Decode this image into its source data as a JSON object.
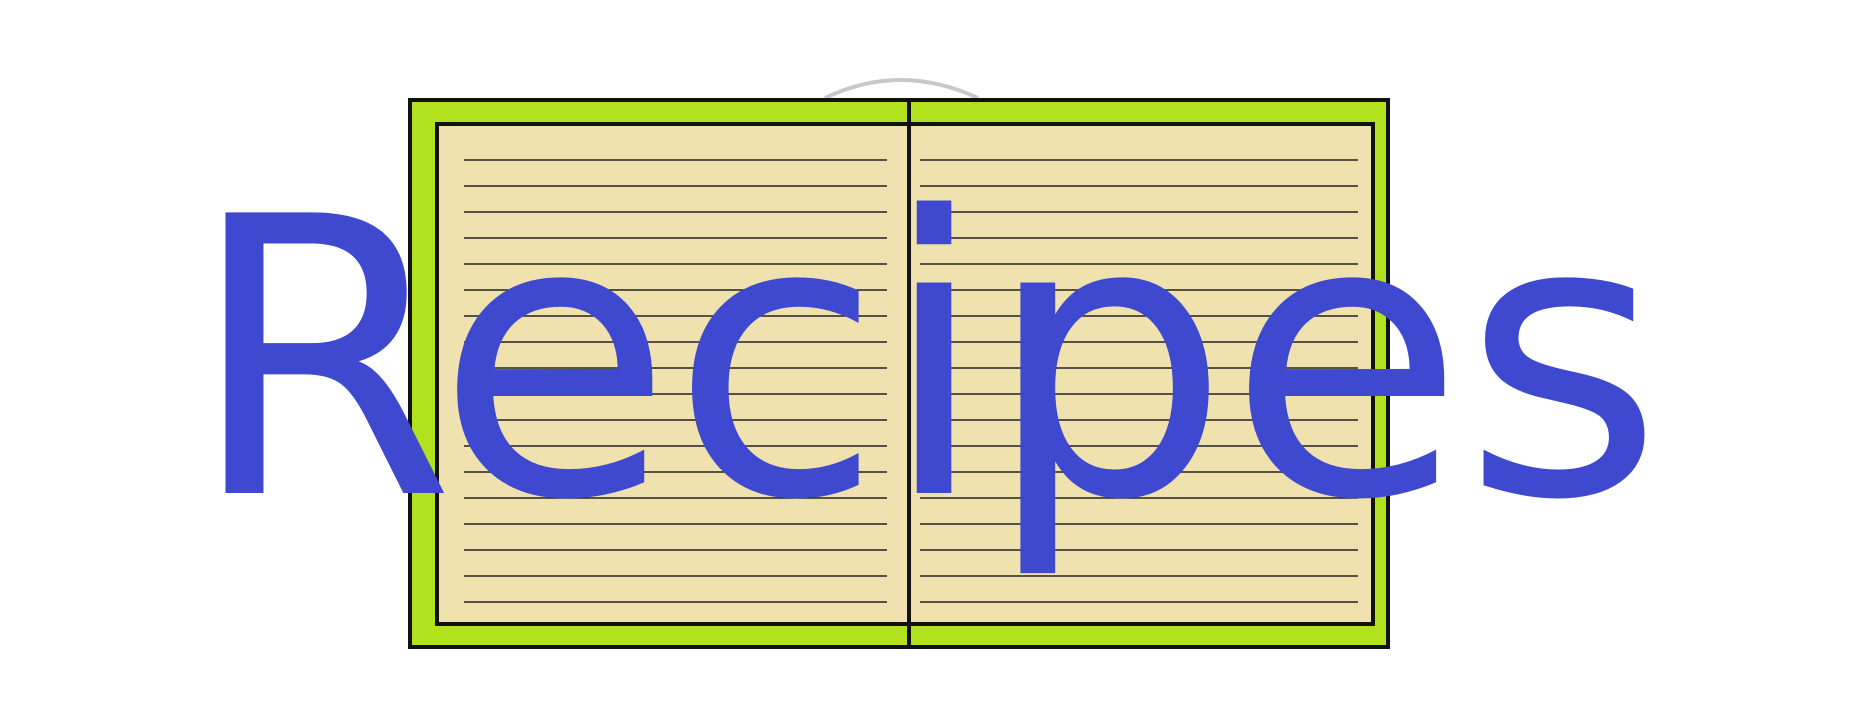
{
  "title": {
    "text": "Recipes"
  },
  "colors": {
    "text": "#3f49cf",
    "cover": "#b2e11d",
    "page": "#efe2af",
    "border": "#111111",
    "ring": "#c8c8c8",
    "background": "#ffffff"
  },
  "icons": {
    "notebook": "notebook-icon",
    "binder_ring": "binder-ring-icon"
  },
  "lined_page": {
    "line_count": 18
  }
}
